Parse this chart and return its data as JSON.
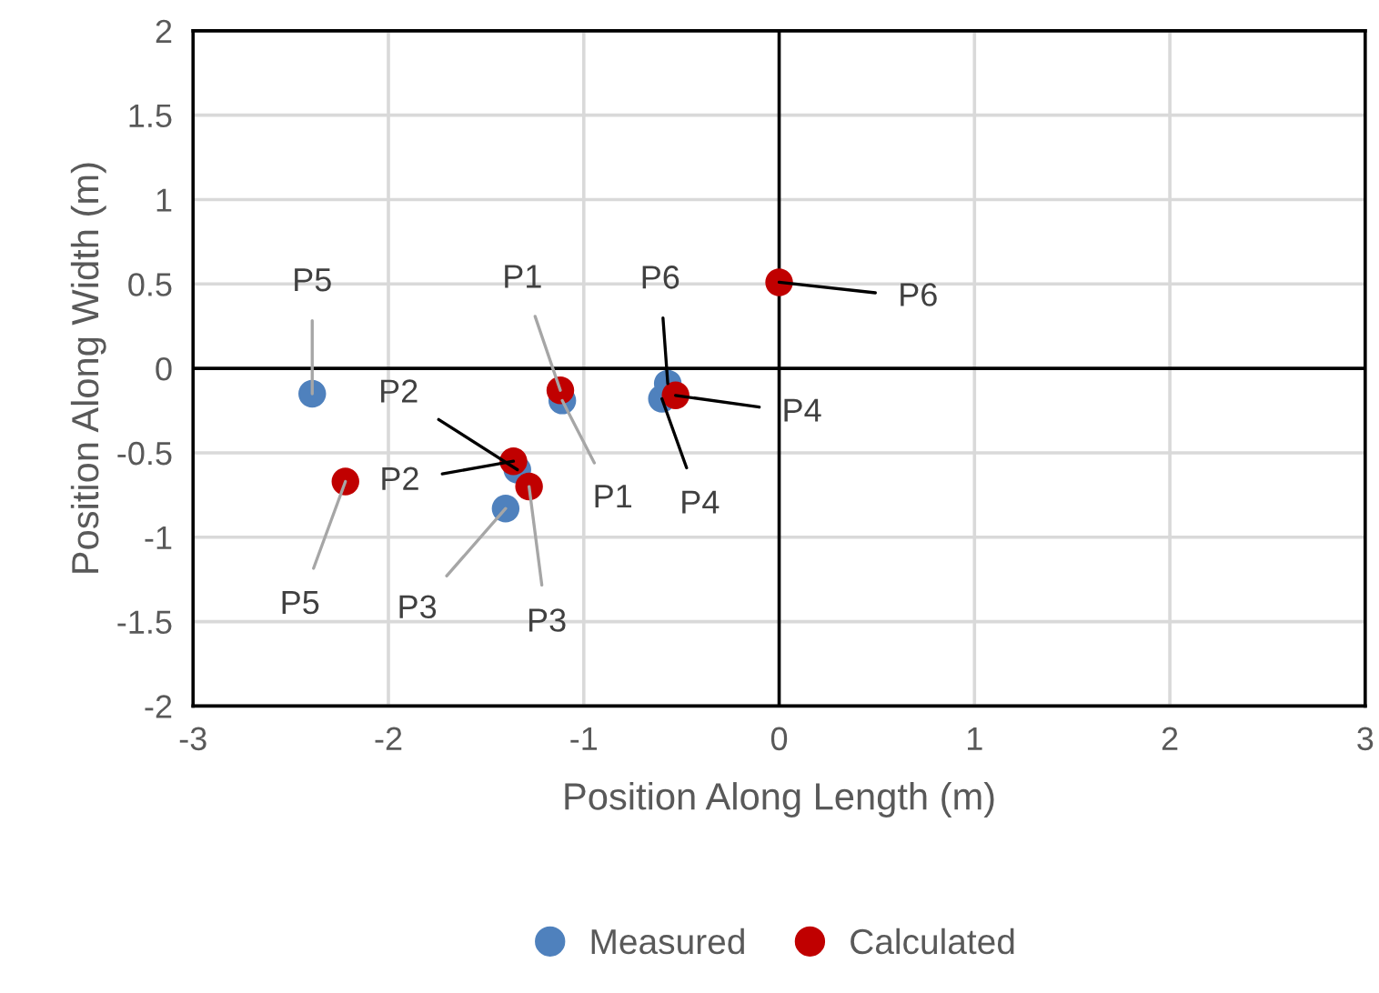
{
  "chart_data": {
    "type": "scatter",
    "xlabel": "Position Along Length (m)",
    "ylabel": "Position Along Width (m)",
    "series": [
      {
        "name": "Measured",
        "color": "#4f81bd",
        "x": [
          -1.11,
          -1.34,
          -1.4,
          -0.6,
          -2.39,
          -0.57
        ],
        "values": [
          -0.19,
          -0.6,
          -0.83,
          -0.18,
          -0.15,
          -0.09
        ]
      },
      {
        "name": "Calculated",
        "color": "#c00000",
        "x": [
          -1.12,
          -1.36,
          -1.28,
          -0.53,
          -2.22,
          0.0
        ],
        "values": [
          -0.13,
          -0.55,
          -0.7,
          -0.16,
          -0.67,
          0.51
        ]
      }
    ],
    "annotations": [
      {
        "text": "P1",
        "x": -1.11,
        "y": -0.19
      },
      {
        "text": "P2",
        "x": -1.34,
        "y": -0.6
      },
      {
        "text": "P3",
        "x": -1.4,
        "y": -0.83
      },
      {
        "text": "P4",
        "x": -0.6,
        "y": -0.18
      },
      {
        "text": "P5",
        "x": -2.39,
        "y": -0.15
      },
      {
        "text": "P6",
        "x": -0.57,
        "y": -0.09
      },
      {
        "text": "P1",
        "x": -1.12,
        "y": -0.13
      },
      {
        "text": "P2",
        "x": -1.36,
        "y": -0.55
      },
      {
        "text": "P3",
        "x": -1.28,
        "y": -0.7
      },
      {
        "text": "P4",
        "x": -0.53,
        "y": -0.16
      },
      {
        "text": "P5",
        "x": -2.22,
        "y": -0.67
      },
      {
        "text": "P6",
        "x": 0.0,
        "y": 0.51
      }
    ],
    "xlim": [
      -3,
      3
    ],
    "xticks": [
      -3,
      -2,
      -1,
      0,
      1,
      2,
      3
    ],
    "ylim": [
      -2,
      2
    ],
    "yticks": [
      -2,
      -1.5,
      -1,
      -0.5,
      0,
      0.5,
      1,
      1.5,
      2
    ],
    "grid": true,
    "legend": "bottom",
    "marker": "circle"
  }
}
